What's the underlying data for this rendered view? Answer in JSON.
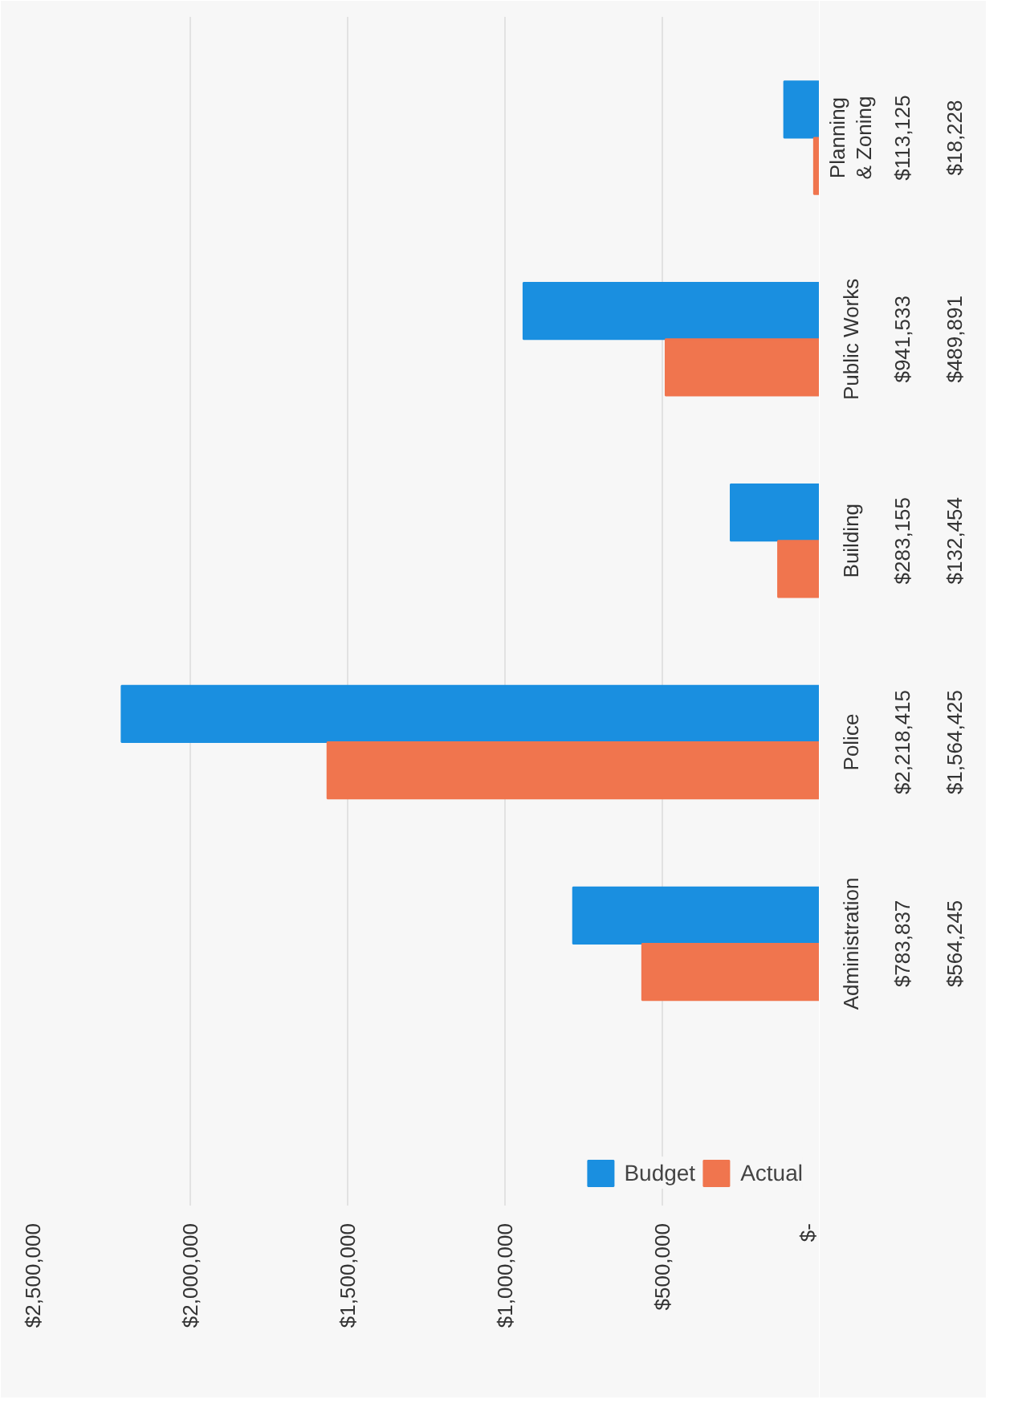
{
  "chart_data": {
    "type": "bar",
    "orientation": "horizontal",
    "categories": [
      "Planning & Zoning",
      "Public Works",
      "Building",
      "Police",
      "Administration"
    ],
    "series": [
      {
        "name": "Budget",
        "color": "#1a8fe0",
        "values": [
          113125,
          941533,
          283155,
          2218415,
          783837
        ],
        "value_labels": [
          "$113,125",
          "$941,533",
          "$283,155",
          "$2,218,415",
          "$783,837"
        ]
      },
      {
        "name": "Actual",
        "color": "#f0754e",
        "values": [
          18228,
          489891,
          132454,
          1564425,
          564245
        ],
        "value_labels": [
          "$18,228",
          "$489,891",
          "$132,454",
          "$1,564,425",
          "$564,245"
        ]
      }
    ],
    "xlim": [
      2500000,
      0
    ],
    "xticks": [
      {
        "value": 0,
        "label": "$-"
      },
      {
        "value": 500000,
        "label": "$500,000"
      },
      {
        "value": 1000000,
        "label": "$1,000,000"
      },
      {
        "value": 1500000,
        "label": "$1,500,000"
      },
      {
        "value": 2000000,
        "label": "$2,000,000"
      },
      {
        "value": 2500000,
        "label": "$2,500,000"
      }
    ],
    "grid": "x",
    "legend": "bottom right"
  }
}
